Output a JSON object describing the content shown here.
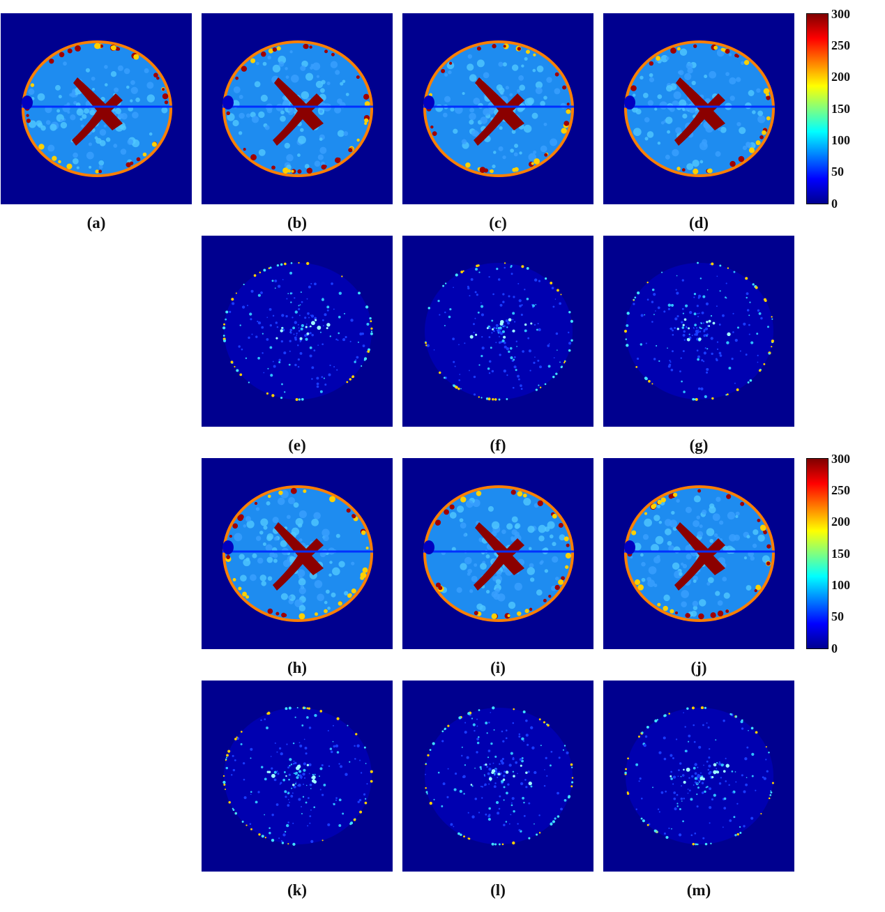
{
  "panels": [
    {
      "id": "a",
      "label": "(a)",
      "kind": "t2map"
    },
    {
      "id": "b",
      "label": "(b)",
      "kind": "t2map"
    },
    {
      "id": "c",
      "label": "(c)",
      "kind": "t2map"
    },
    {
      "id": "d",
      "label": "(d)",
      "kind": "t2map"
    },
    {
      "id": "e",
      "label": "(e)",
      "kind": "error"
    },
    {
      "id": "f",
      "label": "(f)",
      "kind": "error"
    },
    {
      "id": "g",
      "label": "(g)",
      "kind": "error"
    },
    {
      "id": "h",
      "label": "(h)",
      "kind": "t2map"
    },
    {
      "id": "i",
      "label": "(i)",
      "kind": "t2map"
    },
    {
      "id": "j",
      "label": "(j)",
      "kind": "t2map"
    },
    {
      "id": "k",
      "label": "(k)",
      "kind": "error"
    },
    {
      "id": "l",
      "label": "(l)",
      "kind": "error"
    },
    {
      "id": "m",
      "label": "(m)",
      "kind": "error"
    }
  ],
  "colorbars": [
    {
      "ticks": [
        "300",
        "250",
        "200",
        "150",
        "100",
        "50",
        "0"
      ],
      "min": 0,
      "max": 300,
      "colormap": "jet"
    },
    {
      "ticks": [
        "300",
        "250",
        "200",
        "150",
        "100",
        "50",
        "0"
      ],
      "min": 0,
      "max": 300,
      "colormap": "jet"
    }
  ],
  "colors": {
    "background": "#00008f",
    "tissue": "#1e8cf0",
    "csf": "#8b0000",
    "edge": "#ff8c00",
    "error_bg": "#00008f"
  }
}
